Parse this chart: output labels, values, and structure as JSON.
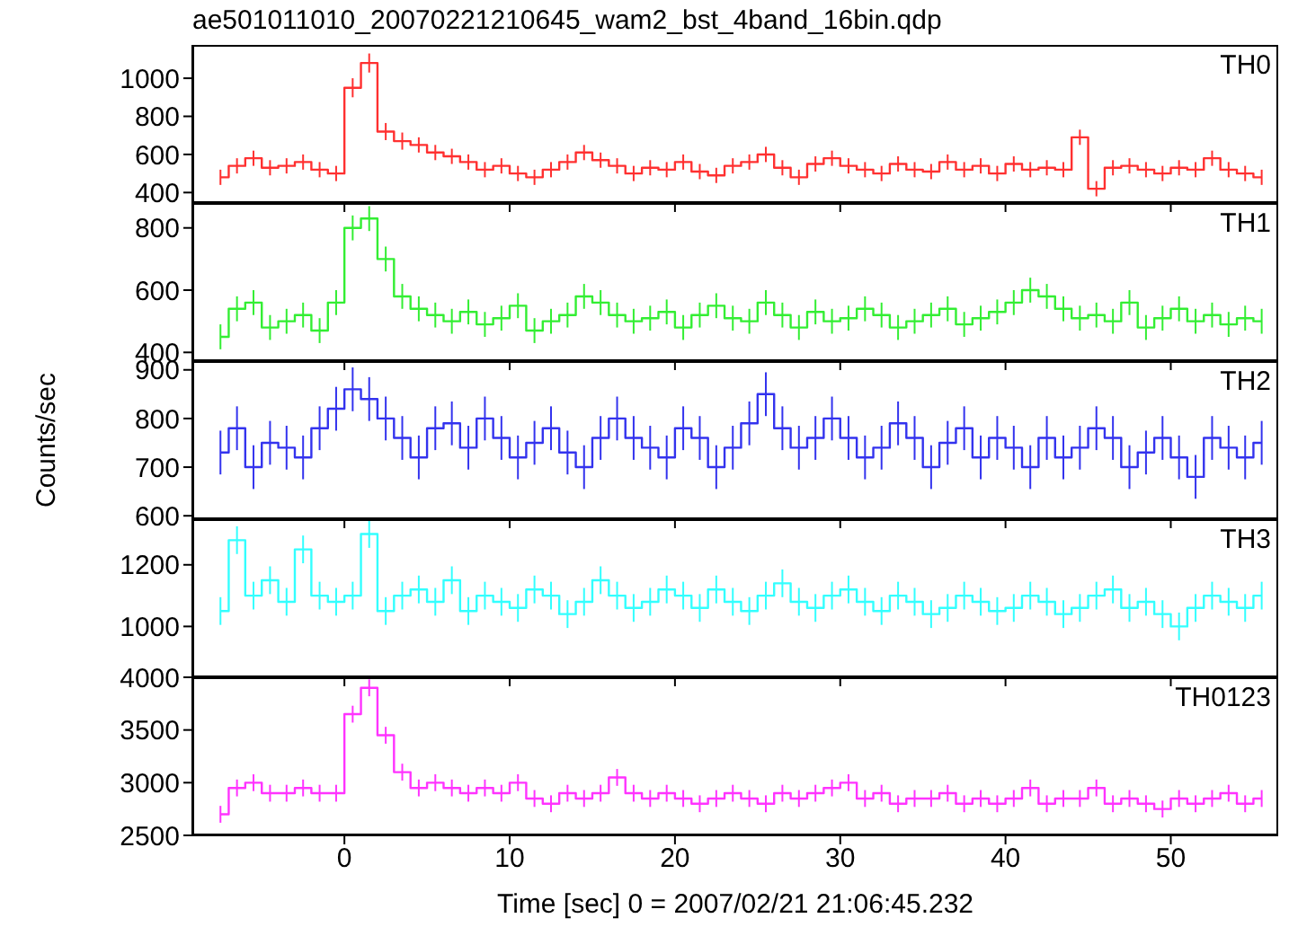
{
  "chart_data": [
    {
      "type": "step",
      "title": "ae501011010_20070221210645_wam2_bst_4band_16bin.qdp",
      "tick_labels": "y",
      "xlim": [
        -9.2,
        56.5
      ],
      "xticks": [
        0,
        10,
        20,
        30,
        40,
        50
      ],
      "ylim": [
        345,
        1175
      ],
      "yticks": [
        400,
        600,
        800,
        1000
      ],
      "x": [
        -7.5,
        -6.5,
        -5.5,
        -4.5,
        -3.5,
        -2.5,
        -1.5,
        -0.5,
        0.5,
        1.5,
        2.5,
        3.5,
        4.5,
        5.5,
        6.5,
        7.5,
        8.5,
        9.5,
        10.5,
        11.5,
        12.5,
        13.5,
        14.5,
        15.5,
        16.5,
        17.5,
        18.5,
        19.5,
        20.5,
        21.5,
        22.5,
        23.5,
        24.5,
        25.5,
        26.5,
        27.5,
        28.5,
        29.5,
        30.5,
        31.5,
        32.5,
        33.5,
        34.5,
        35.5,
        36.5,
        37.5,
        38.5,
        39.5,
        40.5,
        41.5,
        42.5,
        43.5,
        44.5,
        45.5,
        46.5,
        47.5,
        48.5,
        49.5,
        50.5,
        51.5,
        52.5,
        53.5,
        54.5,
        55.5
      ],
      "series": [
        {
          "name": "TH0",
          "color": "#ff3030",
          "values": [
            480,
            540,
            580,
            530,
            540,
            560,
            520,
            500,
            950,
            1080,
            720,
            670,
            650,
            610,
            590,
            560,
            520,
            540,
            500,
            480,
            520,
            560,
            610,
            570,
            540,
            500,
            530,
            520,
            560,
            510,
            490,
            540,
            560,
            600,
            530,
            480,
            550,
            580,
            540,
            520,
            500,
            550,
            520,
            510,
            560,
            520,
            540,
            500,
            550,
            520,
            530,
            520,
            690,
            420,
            530,
            540,
            520,
            500,
            530,
            520,
            580,
            520,
            500,
            480
          ],
          "errors": [
            40,
            40,
            40,
            40,
            40,
            40,
            40,
            40,
            50,
            50,
            45,
            45,
            40,
            40,
            40,
            40,
            40,
            40,
            40,
            40,
            40,
            40,
            40,
            40,
            40,
            40,
            40,
            40,
            40,
            40,
            40,
            40,
            40,
            40,
            40,
            40,
            40,
            40,
            40,
            40,
            40,
            40,
            40,
            40,
            40,
            40,
            40,
            40,
            40,
            40,
            40,
            40,
            40,
            40,
            40,
            40,
            40,
            40,
            40,
            40,
            40,
            40,
            40,
            40
          ]
        }
      ]
    },
    {
      "type": "step",
      "tick_labels": "y",
      "xlim": [
        -9.2,
        56.5
      ],
      "xticks": [
        0,
        10,
        20,
        30,
        40,
        50
      ],
      "ylim": [
        372,
        880
      ],
      "yticks": [
        400,
        600,
        800
      ],
      "x": [
        -7.5,
        -6.5,
        -5.5,
        -4.5,
        -3.5,
        -2.5,
        -1.5,
        -0.5,
        0.5,
        1.5,
        2.5,
        3.5,
        4.5,
        5.5,
        6.5,
        7.5,
        8.5,
        9.5,
        10.5,
        11.5,
        12.5,
        13.5,
        14.5,
        15.5,
        16.5,
        17.5,
        18.5,
        19.5,
        20.5,
        21.5,
        22.5,
        23.5,
        24.5,
        25.5,
        26.5,
        27.5,
        28.5,
        29.5,
        30.5,
        31.5,
        32.5,
        33.5,
        34.5,
        35.5,
        36.5,
        37.5,
        38.5,
        39.5,
        40.5,
        41.5,
        42.5,
        43.5,
        44.5,
        45.5,
        46.5,
        47.5,
        48.5,
        49.5,
        50.5,
        51.5,
        52.5,
        53.5,
        54.5,
        55.5
      ],
      "series": [
        {
          "name": "TH1",
          "color": "#33ee33",
          "values": [
            450,
            540,
            560,
            480,
            500,
            520,
            470,
            560,
            800,
            830,
            700,
            580,
            540,
            520,
            500,
            530,
            490,
            510,
            550,
            470,
            500,
            520,
            580,
            560,
            520,
            500,
            510,
            530,
            480,
            520,
            550,
            510,
            500,
            560,
            520,
            480,
            530,
            500,
            510,
            540,
            520,
            480,
            500,
            520,
            540,
            490,
            510,
            530,
            560,
            600,
            580,
            540,
            510,
            520,
            500,
            560,
            480,
            510,
            540,
            500,
            520,
            490,
            510,
            500
          ],
          "errors": [
            40,
            40,
            40,
            40,
            40,
            40,
            40,
            40,
            40,
            40,
            40,
            40,
            40,
            40,
            40,
            40,
            40,
            40,
            40,
            40,
            40,
            40,
            40,
            40,
            40,
            40,
            40,
            40,
            40,
            40,
            40,
            40,
            40,
            40,
            40,
            40,
            40,
            40,
            40,
            40,
            40,
            40,
            40,
            40,
            40,
            40,
            40,
            40,
            40,
            40,
            40,
            40,
            40,
            40,
            40,
            40,
            40,
            40,
            40,
            40,
            40,
            40,
            40,
            40
          ]
        }
      ]
    },
    {
      "type": "step",
      "ylabel": "Counts/sec",
      "tick_labels": "y",
      "xlim": [
        -9.2,
        56.5
      ],
      "xticks": [
        0,
        10,
        20,
        30,
        40,
        50
      ],
      "ylim": [
        593,
        918
      ],
      "yticks": [
        600,
        700,
        800,
        900
      ],
      "x": [
        -7.5,
        -6.5,
        -5.5,
        -4.5,
        -3.5,
        -2.5,
        -1.5,
        -0.5,
        0.5,
        1.5,
        2.5,
        3.5,
        4.5,
        5.5,
        6.5,
        7.5,
        8.5,
        9.5,
        10.5,
        11.5,
        12.5,
        13.5,
        14.5,
        15.5,
        16.5,
        17.5,
        18.5,
        19.5,
        20.5,
        21.5,
        22.5,
        23.5,
        24.5,
        25.5,
        26.5,
        27.5,
        28.5,
        29.5,
        30.5,
        31.5,
        32.5,
        33.5,
        34.5,
        35.5,
        36.5,
        37.5,
        38.5,
        39.5,
        40.5,
        41.5,
        42.5,
        43.5,
        44.5,
        45.5,
        46.5,
        47.5,
        48.5,
        49.5,
        50.5,
        51.5,
        52.5,
        53.5,
        54.5,
        55.5
      ],
      "series": [
        {
          "name": "TH2",
          "color": "#3333ee",
          "values": [
            730,
            780,
            700,
            750,
            740,
            720,
            780,
            820,
            860,
            840,
            800,
            760,
            720,
            780,
            790,
            740,
            800,
            760,
            720,
            750,
            780,
            730,
            700,
            760,
            800,
            760,
            740,
            720,
            780,
            760,
            700,
            740,
            790,
            850,
            780,
            740,
            760,
            800,
            760,
            720,
            740,
            790,
            760,
            700,
            750,
            780,
            720,
            760,
            740,
            700,
            760,
            720,
            740,
            780,
            760,
            700,
            730,
            760,
            720,
            680,
            760,
            740,
            720,
            750
          ],
          "errors": [
            45,
            45,
            45,
            45,
            45,
            45,
            45,
            45,
            45,
            45,
            45,
            45,
            45,
            45,
            45,
            45,
            45,
            45,
            45,
            45,
            45,
            45,
            45,
            45,
            45,
            45,
            45,
            45,
            45,
            45,
            45,
            45,
            45,
            45,
            45,
            45,
            45,
            45,
            45,
            45,
            45,
            45,
            45,
            45,
            45,
            45,
            45,
            45,
            45,
            45,
            45,
            45,
            45,
            45,
            45,
            45,
            45,
            45,
            45,
            45,
            45,
            45,
            45,
            45
          ]
        }
      ]
    },
    {
      "type": "step",
      "tick_labels": "y",
      "xlim": [
        -9.2,
        56.5
      ],
      "xticks": [
        0,
        10,
        20,
        30,
        40,
        50
      ],
      "ylim": [
        835,
        1348
      ],
      "yticks": [
        1000,
        1200
      ],
      "x": [
        -7.5,
        -6.5,
        -5.5,
        -4.5,
        -3.5,
        -2.5,
        -1.5,
        -0.5,
        0.5,
        1.5,
        2.5,
        3.5,
        4.5,
        5.5,
        6.5,
        7.5,
        8.5,
        9.5,
        10.5,
        11.5,
        12.5,
        13.5,
        14.5,
        15.5,
        16.5,
        17.5,
        18.5,
        19.5,
        20.5,
        21.5,
        22.5,
        23.5,
        24.5,
        25.5,
        26.5,
        27.5,
        28.5,
        29.5,
        30.5,
        31.5,
        32.5,
        33.5,
        34.5,
        35.5,
        36.5,
        37.5,
        38.5,
        39.5,
        40.5,
        41.5,
        42.5,
        43.5,
        44.5,
        45.5,
        46.5,
        47.5,
        48.5,
        49.5,
        50.5,
        51.5,
        52.5,
        53.5,
        54.5,
        55.5
      ],
      "series": [
        {
          "name": "TH3",
          "color": "#33ffff",
          "values": [
            1050,
            1280,
            1100,
            1150,
            1080,
            1250,
            1100,
            1080,
            1100,
            1300,
            1050,
            1100,
            1120,
            1080,
            1150,
            1050,
            1100,
            1080,
            1060,
            1120,
            1100,
            1040,
            1080,
            1150,
            1100,
            1060,
            1080,
            1120,
            1100,
            1060,
            1120,
            1080,
            1050,
            1100,
            1140,
            1080,
            1060,
            1100,
            1120,
            1080,
            1050,
            1100,
            1080,
            1040,
            1060,
            1100,
            1080,
            1050,
            1060,
            1100,
            1080,
            1040,
            1060,
            1100,
            1120,
            1060,
            1080,
            1040,
            1000,
            1060,
            1100,
            1080,
            1060,
            1100
          ],
          "errors": [
            45,
            45,
            45,
            45,
            45,
            45,
            45,
            45,
            45,
            45,
            45,
            45,
            45,
            45,
            45,
            45,
            45,
            45,
            45,
            45,
            45,
            45,
            45,
            45,
            45,
            45,
            45,
            45,
            45,
            45,
            45,
            45,
            45,
            45,
            45,
            45,
            45,
            45,
            45,
            45,
            45,
            45,
            45,
            45,
            45,
            45,
            45,
            45,
            45,
            45,
            45,
            45,
            45,
            45,
            45,
            45,
            45,
            45,
            45,
            45,
            45,
            45,
            45,
            45
          ]
        }
      ]
    },
    {
      "type": "step",
      "xlabel": "Time [sec] 0 = 2007/02/21 21:06:45.232",
      "xlim": [
        -9.2,
        56.5
      ],
      "xticks": [
        0,
        10,
        20,
        30,
        40,
        50
      ],
      "ylim": [
        2500,
        4000
      ],
      "yticks": [
        2500,
        3000,
        3500,
        4000
      ],
      "x": [
        -7.5,
        -6.5,
        -5.5,
        -4.5,
        -3.5,
        -2.5,
        -1.5,
        -0.5,
        0.5,
        1.5,
        2.5,
        3.5,
        4.5,
        5.5,
        6.5,
        7.5,
        8.5,
        9.5,
        10.5,
        11.5,
        12.5,
        13.5,
        14.5,
        15.5,
        16.5,
        17.5,
        18.5,
        19.5,
        20.5,
        21.5,
        22.5,
        23.5,
        24.5,
        25.5,
        26.5,
        27.5,
        28.5,
        29.5,
        30.5,
        31.5,
        32.5,
        33.5,
        34.5,
        35.5,
        36.5,
        37.5,
        38.5,
        39.5,
        40.5,
        41.5,
        42.5,
        43.5,
        44.5,
        45.5,
        46.5,
        47.5,
        48.5,
        49.5,
        50.5,
        51.5,
        52.5,
        53.5,
        54.5,
        55.5
      ],
      "series": [
        {
          "name": "TH0123",
          "color": "#ff33ff",
          "values": [
            2700,
            2950,
            3000,
            2900,
            2900,
            2950,
            2900,
            2900,
            3650,
            3900,
            3450,
            3100,
            2950,
            3000,
            2950,
            2900,
            2950,
            2900,
            3000,
            2850,
            2800,
            2900,
            2850,
            2900,
            3050,
            2900,
            2850,
            2900,
            2850,
            2800,
            2850,
            2900,
            2850,
            2800,
            2900,
            2850,
            2900,
            2950,
            3000,
            2850,
            2900,
            2800,
            2850,
            2850,
            2900,
            2800,
            2850,
            2800,
            2850,
            2950,
            2800,
            2850,
            2850,
            2950,
            2800,
            2850,
            2800,
            2750,
            2850,
            2800,
            2850,
            2900,
            2800,
            2850
          ],
          "errors": [
            80,
            80,
            80,
            80,
            80,
            80,
            80,
            80,
            80,
            80,
            80,
            80,
            80,
            80,
            80,
            80,
            80,
            80,
            80,
            80,
            80,
            80,
            80,
            80,
            80,
            80,
            80,
            80,
            80,
            80,
            80,
            80,
            80,
            80,
            80,
            80,
            80,
            80,
            80,
            80,
            80,
            80,
            80,
            80,
            80,
            80,
            80,
            80,
            80,
            80,
            80,
            80,
            80,
            80,
            80,
            80,
            80,
            80,
            80,
            80,
            80,
            80,
            80,
            80
          ]
        }
      ]
    }
  ]
}
